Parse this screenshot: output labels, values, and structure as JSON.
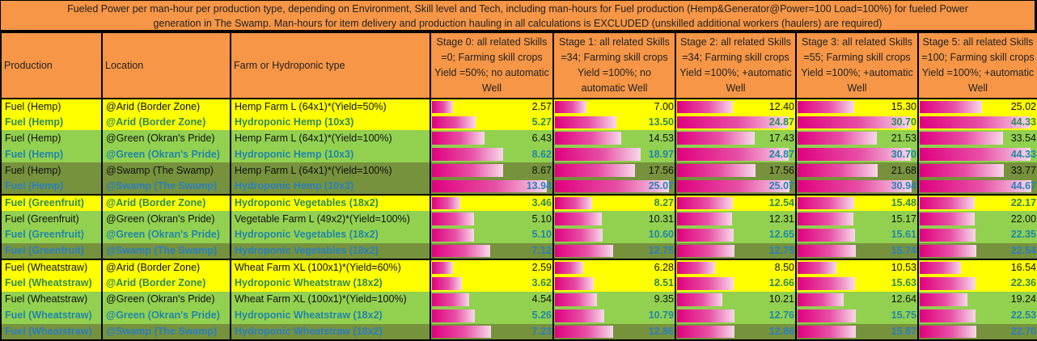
{
  "title_line1": "Fueled Power per man-hour per production type, depending on Environment, Skill level and Tech, including man-hours for Fuel production (Hemp&Generator@Power=100 Load=100%) for fueled Power",
  "title_line2": "generation in The Swamp. Man-hours for item delivery and production hauling in all calculations is EXCLUDED (unskilled additional workers (haulers) are required)",
  "headers": {
    "production": "Production",
    "location": "Location",
    "type": "Farm or Hydroponic type",
    "stages": [
      "Stage 0: all related Skills =0; Farming skill crops Yield =50%; no automatic Well",
      "Stage 1: all related Skills =34; Farming skill crops Yield =100%; no automatic Well",
      "Stage 2: all related Skills =34; Farming skill crops Yield =100%; +automatic Well",
      "Stage 3: all related Skills =55; Farming skill crops Yield =100%; +automatic Well",
      "Stage 5: all related Skills =100; Farming skill crops Yield =100%; +automatic Well"
    ]
  },
  "colors": {
    "header_bg": "#F79646",
    "arid_bg": "#FFFF00",
    "green_bg": "#92D050",
    "swamp_bg": "#76923C",
    "hydro_text": "#1F7FB0",
    "bar_start": "#E0007F",
    "bar_end": "#F8D9EA"
  },
  "rows": [
    {
      "production": "Fuel (Hemp)",
      "location": "@Arid (Border Zone)",
      "type": "Hemp Farm L (64x1)*(Yield=50%)",
      "env": "arid",
      "hydro": false,
      "values": [
        "2.57",
        "7.00",
        "12.40",
        "15.30",
        "25.02"
      ]
    },
    {
      "production": "Fuel (Hemp)",
      "location": "@Arid (Border Zone)",
      "type": "Hydroponic Hemp (10x3)",
      "env": "arid",
      "hydro": true,
      "values": [
        "5.27",
        "13.50",
        "24.87",
        "30.70",
        "44.33"
      ]
    },
    {
      "production": "Fuel (Hemp)",
      "location": "@Green (Okran's Pride)",
      "type": "Hemp Farm L (64x1)*(Yield=100%)",
      "env": "green",
      "hydro": false,
      "values": [
        "6.43",
        "14.53",
        "17.43",
        "21.53",
        "33.54"
      ]
    },
    {
      "production": "Fuel (Hemp)",
      "location": "@Green (Okran's Pride)",
      "type": "Hydroponic Hemp (10x3)",
      "env": "green",
      "hydro": true,
      "values": [
        "8.62",
        "18.97",
        "24.87",
        "30.70",
        "44.33"
      ]
    },
    {
      "production": "Fuel (Hemp)",
      "location": "@Swamp (The Swamp)",
      "type": "Hemp Farm L (64x1)*(Yield=100%)",
      "env": "swamp",
      "hydro": false,
      "values": [
        "8.67",
        "17.56",
        "17.56",
        "21.68",
        "33.77"
      ]
    },
    {
      "production": "Fuel (Hemp)",
      "location": "@Swamp (The Swamp)",
      "type": "Hydroponic Hemp (10x3)",
      "env": "swamp",
      "hydro": true,
      "group_end": true,
      "values": [
        "13.94",
        "25.07",
        "25.07",
        "30.94",
        "44.67"
      ]
    },
    {
      "production": "Fuel (Greenfruit)",
      "location": "@Arid (Border Zone)",
      "type": "Hydroponic Vegetables (18x2)",
      "env": "arid",
      "hydro": true,
      "values": [
        "3.46",
        "8.27",
        "12.54",
        "15.48",
        "22.17"
      ]
    },
    {
      "production": "Fuel (Greenfruit)",
      "location": "@Green (Okran's Pride)",
      "type": "Vegetable Farm L (49x2)*(Yield=100%)",
      "env": "green",
      "hydro": false,
      "values": [
        "5.10",
        "10.31",
        "12.31",
        "15.17",
        "22.00"
      ]
    },
    {
      "production": "Fuel (Greenfruit)",
      "location": "@Green (Okran's Pride)",
      "type": "Hydroponic Vegetables (18x2)",
      "env": "green",
      "hydro": true,
      "values": [
        "5.10",
        "10.60",
        "12.65",
        "15.61",
        "22.35"
      ]
    },
    {
      "production": "Fuel (Greenfruit)",
      "location": "@Swamp (The Swamp)",
      "type": "Hydroponic Vegetables (18x2)",
      "env": "swamp",
      "hydro": true,
      "group_end": true,
      "values": [
        "7.12",
        "12.75",
        "12.75",
        "15.74",
        "22.54"
      ]
    },
    {
      "production": "Fuel (Wheatstraw)",
      "location": "@Arid (Border Zone)",
      "type": "Wheat Farm XL (100x1)*(Yield=60%)",
      "env": "arid",
      "hydro": false,
      "values": [
        "2.59",
        "6.28",
        "8.50",
        "10.53",
        "16.54"
      ]
    },
    {
      "production": "Fuel (Wheatstraw)",
      "location": "@Arid (Border Zone)",
      "type": "Hydroponic Wheatstraw (18x2)",
      "env": "arid",
      "hydro": true,
      "values": [
        "3.62",
        "8.51",
        "12.66",
        "15.63",
        "22.36"
      ]
    },
    {
      "production": "Fuel (Wheatstraw)",
      "location": "@Green (Okran's Pride)",
      "type": "Wheat Farm XL (100x1)*(Yield=100%)",
      "env": "green",
      "hydro": false,
      "values": [
        "4.54",
        "9.35",
        "10.21",
        "12.64",
        "19.24"
      ]
    },
    {
      "production": "Fuel (Wheatstraw)",
      "location": "@Green (Okran's Pride)",
      "type": "Hydroponic Wheatstraw (18x2)",
      "env": "green",
      "hydro": true,
      "values": [
        "5.26",
        "10.79",
        "12.76",
        "15.75",
        "22.53"
      ]
    },
    {
      "production": "Fuel (Wheatstraw)",
      "location": "@Swamp (The Swamp)",
      "type": "Hydroponic Wheatstraw (18x2)",
      "env": "swamp",
      "hydro": true,
      "group_end": true,
      "values": [
        "7.23",
        "12.86",
        "12.86",
        "15.87",
        "22.70"
      ]
    }
  ]
}
